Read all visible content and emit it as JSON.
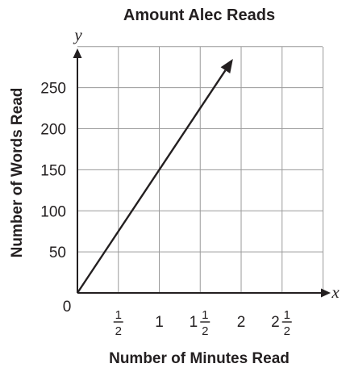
{
  "chart_data": {
    "type": "line",
    "title": "Amount Alec Reads",
    "xlabel": "Number of Minutes Read",
    "ylabel": "Number of Words Read",
    "x_var": "x",
    "y_var": "y",
    "origin_label": "0",
    "xlim": [
      0,
      3
    ],
    "ylim": [
      0,
      300
    ],
    "grid": true,
    "x_ticks": [
      {
        "value": 0.5,
        "whole": "",
        "num": "1",
        "den": "2"
      },
      {
        "value": 1,
        "whole": "1",
        "num": "",
        "den": ""
      },
      {
        "value": 1.5,
        "whole": "1",
        "num": "1",
        "den": "2"
      },
      {
        "value": 2,
        "whole": "2",
        "num": "",
        "den": ""
      },
      {
        "value": 2.5,
        "whole": "2",
        "num": "1",
        "den": "2"
      }
    ],
    "y_ticks": [
      50,
      100,
      150,
      200,
      250
    ],
    "series": [
      {
        "x": [
          0,
          1.9
        ],
        "y": [
          0,
          285
        ],
        "arrow_end": true
      }
    ]
  }
}
